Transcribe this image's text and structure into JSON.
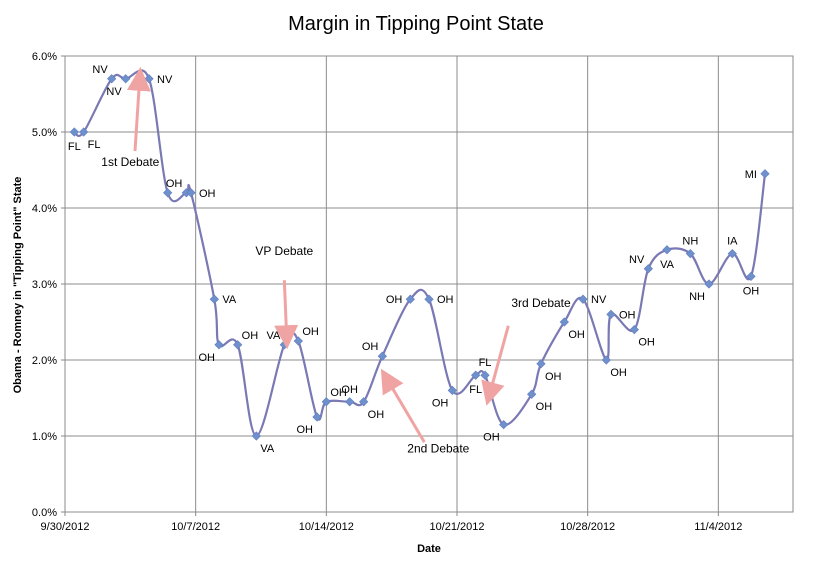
{
  "chart_data": {
    "type": "line",
    "title": "Margin in Tipping Point State",
    "xlabel": "Date",
    "ylabel": "Obama - Romney in \"Tipping Point\" State",
    "x_axis": {
      "type": "date",
      "min": "2012-09-30",
      "max": "2012-11-08",
      "ticks": [
        {
          "date": "2012-09-30",
          "label": "9/30/2012"
        },
        {
          "date": "2012-10-07",
          "label": "10/7/2012"
        },
        {
          "date": "2012-10-14",
          "label": "10/14/2012"
        },
        {
          "date": "2012-10-21",
          "label": "10/21/2012"
        },
        {
          "date": "2012-10-28",
          "label": "10/28/2012"
        },
        {
          "date": "2012-11-04",
          "label": "11/4/2012"
        }
      ]
    },
    "y_axis": {
      "min": 0,
      "max": 6,
      "ticks": [
        {
          "value": 0,
          "label": "0.0%"
        },
        {
          "value": 1,
          "label": "1.0%"
        },
        {
          "value": 2,
          "label": "2.0%"
        },
        {
          "value": 3,
          "label": "3.0%"
        },
        {
          "value": 4,
          "label": "4.0%"
        },
        {
          "value": 5,
          "label": "5.0%"
        },
        {
          "value": 6,
          "label": "6.0%"
        }
      ]
    },
    "grid": {
      "horizontal": true,
      "vertical": true
    },
    "line_color": "#7a79b4",
    "marker_color": "#6f8fcd",
    "arrow_color": "#f0a3a3",
    "points": [
      {
        "x": "2012-09-30 12:00",
        "y": 5.0,
        "label": "FL",
        "pos": "below"
      },
      {
        "x": "2012-10-01 00:00",
        "y": 5.0,
        "label": "FL",
        "pos": "below-right"
      },
      {
        "x": "2012-10-02 12:00",
        "y": 5.7,
        "label": "NV",
        "pos": "above-left"
      },
      {
        "x": "2012-10-03 06:00",
        "y": 5.7,
        "label": "NV",
        "pos": "below-left"
      },
      {
        "x": "2012-10-04 12:00",
        "y": 5.7,
        "label": "NV",
        "pos": "right"
      },
      {
        "x": "2012-10-05 12:00",
        "y": 4.2,
        "label": "",
        "pos": "none"
      },
      {
        "x": "2012-10-06 12:00",
        "y": 4.2,
        "label": "OH",
        "pos": "above-left"
      },
      {
        "x": "2012-10-06 18:00",
        "y": 4.2,
        "label": "OH",
        "pos": "right"
      },
      {
        "x": "2012-10-08 00:00",
        "y": 2.8,
        "label": "VA",
        "pos": "right"
      },
      {
        "x": "2012-10-08 06:00",
        "y": 2.2,
        "label": "OH",
        "pos": "below-left"
      },
      {
        "x": "2012-10-09 06:00",
        "y": 2.2,
        "label": "OH",
        "pos": "above-right"
      },
      {
        "x": "2012-10-10 06:00",
        "y": 1.0,
        "label": "VA",
        "pos": "below-right"
      },
      {
        "x": "2012-10-11 18:00",
        "y": 2.2,
        "label": "VA",
        "pos": "above-left"
      },
      {
        "x": "2012-10-12 12:00",
        "y": 2.25,
        "label": "OH",
        "pos": "above-right"
      },
      {
        "x": "2012-10-13 12:00",
        "y": 1.25,
        "label": "OH",
        "pos": "below-left"
      },
      {
        "x": "2012-10-14 00:00",
        "y": 1.45,
        "label": "OH",
        "pos": "above-right"
      },
      {
        "x": "2012-10-15 06:00",
        "y": 1.45,
        "label": "OH",
        "pos": "above"
      },
      {
        "x": "2012-10-16 00:00",
        "y": 1.45,
        "label": "OH",
        "pos": "below-right"
      },
      {
        "x": "2012-10-17 00:00",
        "y": 2.05,
        "label": "OH",
        "pos": "above-left"
      },
      {
        "x": "2012-10-18 12:00",
        "y": 2.8,
        "label": "OH",
        "pos": "left"
      },
      {
        "x": "2012-10-19 12:00",
        "y": 2.8,
        "label": "OH",
        "pos": "right"
      },
      {
        "x": "2012-10-20 18:00",
        "y": 1.6,
        "label": "OH",
        "pos": "below-left"
      },
      {
        "x": "2012-10-22 00:00",
        "y": 1.8,
        "label": "FL",
        "pos": "below"
      },
      {
        "x": "2012-10-22 12:00",
        "y": 1.8,
        "label": "FL",
        "pos": "above"
      },
      {
        "x": "2012-10-23 12:00",
        "y": 1.15,
        "label": "OH",
        "pos": "below-left"
      },
      {
        "x": "2012-10-25 00:00",
        "y": 1.55,
        "label": "OH",
        "pos": "below-right"
      },
      {
        "x": "2012-10-25 12:00",
        "y": 1.95,
        "label": "OH",
        "pos": "below-right"
      },
      {
        "x": "2012-10-26 18:00",
        "y": 2.5,
        "label": "OH",
        "pos": "below-right"
      },
      {
        "x": "2012-10-27 18:00",
        "y": 2.8,
        "label": "NV",
        "pos": "right"
      },
      {
        "x": "2012-10-29 00:00",
        "y": 2.0,
        "label": "OH",
        "pos": "below-right"
      },
      {
        "x": "2012-10-29 06:00",
        "y": 2.6,
        "label": "OH",
        "pos": "right"
      },
      {
        "x": "2012-10-30 12:00",
        "y": 2.4,
        "label": "OH",
        "pos": "below-right"
      },
      {
        "x": "2012-10-31 06:00",
        "y": 3.2,
        "label": "NV",
        "pos": "above-left"
      },
      {
        "x": "2012-11-01 06:00",
        "y": 3.45,
        "label": "VA",
        "pos": "below"
      },
      {
        "x": "2012-11-02 12:00",
        "y": 3.4,
        "label": "NH",
        "pos": "above"
      },
      {
        "x": "2012-11-03 12:00",
        "y": 3.0,
        "label": "NH",
        "pos": "below-left"
      },
      {
        "x": "2012-11-04 18:00",
        "y": 3.4,
        "label": "IA",
        "pos": "above"
      },
      {
        "x": "2012-11-05 18:00",
        "y": 3.1,
        "label": "OH",
        "pos": "below"
      },
      {
        "x": "2012-11-06 12:00",
        "y": 4.45,
        "label": "MI",
        "pos": "left"
      }
    ],
    "annotations": [
      {
        "text": "1st Debate",
        "label_x": "2012-10-03 12:00",
        "label_y": 4.55,
        "arrow_from": {
          "x": "2012-10-03 18:00",
          "y": 4.75
        },
        "arrow_to": {
          "x": "2012-10-04 00:00",
          "y": 5.7
        }
      },
      {
        "text": "VP Debate",
        "label_x": "2012-10-11 18:00",
        "label_y": 3.38,
        "arrow_from": {
          "x": "2012-10-11 18:00",
          "y": 3.05
        },
        "arrow_to": {
          "x": "2012-10-11 21:00",
          "y": 2.3
        }
      },
      {
        "text": "2nd Debate",
        "label_x": "2012-10-20 00:00",
        "label_y": 0.78,
        "arrow_from": {
          "x": "2012-10-19 06:00",
          "y": 0.92
        },
        "arrow_to": {
          "x": "2012-10-17 06:00",
          "y": 1.75
        }
      },
      {
        "text": "3rd Debate",
        "label_x": "2012-10-25 12:00",
        "label_y": 2.7,
        "arrow_from": {
          "x": "2012-10-23 18:00",
          "y": 2.45
        },
        "arrow_to": {
          "x": "2012-10-22 18:00",
          "y": 1.55
        }
      }
    ]
  }
}
